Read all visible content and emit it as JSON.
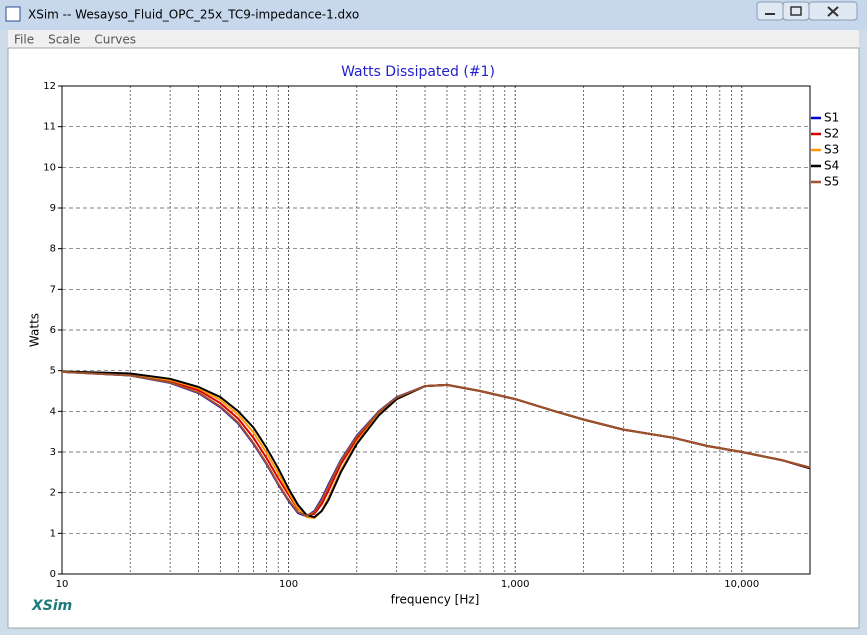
{
  "window": {
    "title": "XSim -- Wesayso_Fluid_OPC_25x_TC9-impedance-1.dxo",
    "menu": [
      "File",
      "Scale",
      "Curves"
    ],
    "brand": "XSim"
  },
  "chart_data": {
    "type": "line",
    "title": "Watts Dissipated (#1)",
    "x_label": "frequency [Hz]",
    "y_label": "Watts",
    "x": [
      10,
      20,
      30,
      40,
      50,
      60,
      70,
      80,
      90,
      100,
      110,
      120,
      130,
      140,
      150,
      170,
      200,
      250,
      300,
      400,
      500,
      700,
      1000,
      1500,
      2000,
      3000,
      5000,
      7000,
      10000,
      15000,
      20000
    ],
    "series": [
      {
        "name": "S1",
        "color": "#0000cc",
        "values": [
          4.97,
          4.88,
          4.7,
          4.45,
          4.1,
          3.7,
          3.2,
          2.7,
          2.2,
          1.8,
          1.5,
          1.42,
          1.55,
          1.85,
          2.2,
          2.8,
          3.4,
          4.0,
          4.35,
          4.62,
          4.65,
          4.5,
          4.3,
          4.0,
          3.8,
          3.55,
          3.35,
          3.15,
          3.0,
          2.8,
          2.6
        ]
      },
      {
        "name": "S2",
        "color": "#dd0000",
        "values": [
          4.97,
          4.9,
          4.74,
          4.52,
          4.2,
          3.82,
          3.35,
          2.85,
          2.35,
          1.95,
          1.6,
          1.45,
          1.48,
          1.72,
          2.05,
          2.7,
          3.33,
          3.97,
          4.33,
          4.62,
          4.65,
          4.5,
          4.3,
          4.0,
          3.8,
          3.55,
          3.35,
          3.15,
          3.0,
          2.8,
          2.6
        ]
      },
      {
        "name": "S3",
        "color": "#ff9900",
        "values": [
          4.98,
          4.92,
          4.77,
          4.57,
          4.28,
          3.92,
          3.48,
          2.98,
          2.48,
          2.02,
          1.62,
          1.4,
          1.38,
          1.55,
          1.88,
          2.55,
          3.25,
          3.92,
          4.3,
          4.62,
          4.65,
          4.5,
          4.3,
          4.0,
          3.8,
          3.55,
          3.35,
          3.15,
          3.0,
          2.8,
          2.62
        ]
      },
      {
        "name": "S4",
        "color": "#000000",
        "values": [
          4.98,
          4.93,
          4.8,
          4.6,
          4.35,
          4.0,
          3.6,
          3.1,
          2.6,
          2.1,
          1.7,
          1.45,
          1.4,
          1.55,
          1.82,
          2.5,
          3.2,
          3.9,
          4.3,
          4.62,
          4.65,
          4.5,
          4.3,
          4.0,
          3.8,
          3.55,
          3.35,
          3.15,
          3.0,
          2.8,
          2.6
        ]
      },
      {
        "name": "S5",
        "color": "#a0522d",
        "values": [
          4.97,
          4.88,
          4.71,
          4.46,
          4.12,
          3.72,
          3.22,
          2.72,
          2.22,
          1.82,
          1.52,
          1.43,
          1.53,
          1.82,
          2.17,
          2.78,
          3.38,
          3.99,
          4.34,
          4.62,
          4.65,
          4.5,
          4.3,
          4.0,
          3.8,
          3.55,
          3.35,
          3.15,
          3.0,
          2.8,
          2.62
        ]
      }
    ],
    "xlim": [
      10,
      20000
    ],
    "xlog": true,
    "xticks": [
      10,
      100,
      {
        "value": 1000,
        "label": "1,000"
      },
      {
        "value": 10000,
        "label": "10,000"
      }
    ],
    "xminorticks": [
      20,
      30,
      40,
      50,
      60,
      70,
      80,
      90,
      200,
      300,
      400,
      500,
      600,
      700,
      800,
      900,
      2000,
      3000,
      4000,
      5000,
      6000,
      7000,
      8000,
      9000
    ],
    "ylim": [
      0,
      12
    ],
    "yticks": [
      0,
      1,
      2,
      3,
      4,
      5,
      6,
      7,
      8,
      9,
      10,
      11,
      12
    ],
    "grid": true,
    "legend": "right"
  }
}
